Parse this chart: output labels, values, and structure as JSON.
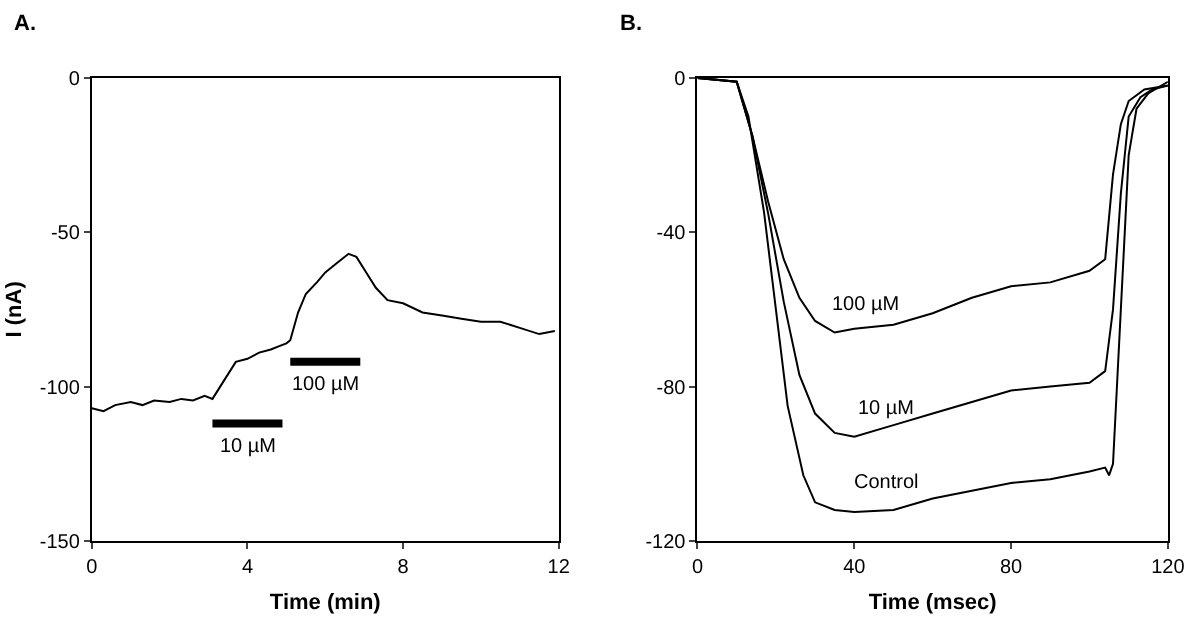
{
  "chart_data": [
    {
      "type": "line",
      "title": "A.",
      "xlabel": "Time (min)",
      "ylabel": "I (nA)",
      "xlim": [
        0,
        12
      ],
      "xticks": [
        0,
        4,
        8,
        12
      ],
      "ylim": [
        -150,
        0
      ],
      "yticks": [
        0,
        -50,
        -100,
        -150
      ],
      "series": [
        {
          "color": "#000000",
          "x": [
            0,
            0.3,
            0.6,
            1,
            1.3,
            1.6,
            2,
            2.3,
            2.6,
            2.9,
            3.1,
            3.4,
            3.7,
            4,
            4.3,
            4.6,
            4.8,
            5,
            5.1,
            5.3,
            5.5,
            5.8,
            6,
            6.3,
            6.6,
            6.8,
            7,
            7.3,
            7.6,
            8,
            8.5,
            9,
            9.5,
            10,
            10.5,
            11,
            11.5,
            11.9
          ],
          "values": [
            -107,
            -108,
            -106,
            -105,
            -106,
            -104.5,
            -105,
            -104,
            -104.5,
            -103,
            -104,
            -98,
            -92,
            -91,
            -89,
            -88,
            -87,
            -86,
            -85,
            -76,
            -70,
            -66,
            -63,
            -60,
            -57,
            -58,
            -62,
            -68,
            -72,
            -73,
            -76,
            -77,
            -78,
            -79,
            -79,
            -81,
            -83,
            -82
          ]
        },
        {
          "name": "10 µM",
          "color": "#000000",
          "x": [
            3.1,
            4.9
          ],
          "values": [
            -112,
            -112
          ]
        },
        {
          "name": "100 µM",
          "color": "#000000",
          "x": [
            5.1,
            6.9
          ],
          "values": [
            -92,
            -92
          ]
        }
      ]
    },
    {
      "type": "line",
      "title": "B.",
      "xlabel": "Time (msec)",
      "xlim": [
        0,
        120
      ],
      "xticks": [
        0,
        40,
        80,
        120
      ],
      "ylim": [
        -120,
        0
      ],
      "yticks": [
        0,
        -40,
        -80,
        -120
      ],
      "series": [
        {
          "name": "100 µM",
          "color": "#000000",
          "x": [
            0,
            10,
            14,
            18,
            22,
            26,
            30,
            35,
            40,
            50,
            60,
            70,
            80,
            90,
            100,
            104,
            106,
            108,
            110,
            114,
            120
          ],
          "values": [
            0,
            -1,
            -15,
            -32,
            -47,
            -57,
            -63,
            -66,
            -65,
            -64,
            -61,
            -57,
            -54,
            -53,
            -50,
            -47,
            -25,
            -12,
            -6,
            -3,
            -2
          ]
        },
        {
          "name": "10 µM",
          "color": "#000000",
          "x": [
            0,
            10,
            14,
            18,
            22,
            26,
            30,
            35,
            40,
            50,
            60,
            70,
            80,
            90,
            100,
            104,
            106,
            108,
            110,
            113,
            116,
            120
          ],
          "values": [
            0,
            -1,
            -15,
            -35,
            -58,
            -77,
            -87,
            -92,
            -93,
            -90,
            -87,
            -84,
            -81,
            -80,
            -79,
            -76,
            -60,
            -30,
            -10,
            -5,
            -3,
            -2
          ]
        },
        {
          "name": "Control",
          "color": "#000000",
          "x": [
            0,
            10,
            13,
            17,
            20,
            23,
            27,
            30,
            35,
            40,
            50,
            60,
            70,
            80,
            90,
            100,
            104,
            105,
            106,
            108,
            110,
            112,
            115,
            120
          ],
          "values": [
            0,
            -1,
            -10,
            -35,
            -60,
            -85,
            -103,
            -110,
            -112,
            -112.5,
            -112,
            -109,
            -107,
            -105,
            -104,
            -102,
            -101,
            -103,
            -100,
            -60,
            -20,
            -8,
            -4,
            -1
          ]
        }
      ]
    }
  ]
}
